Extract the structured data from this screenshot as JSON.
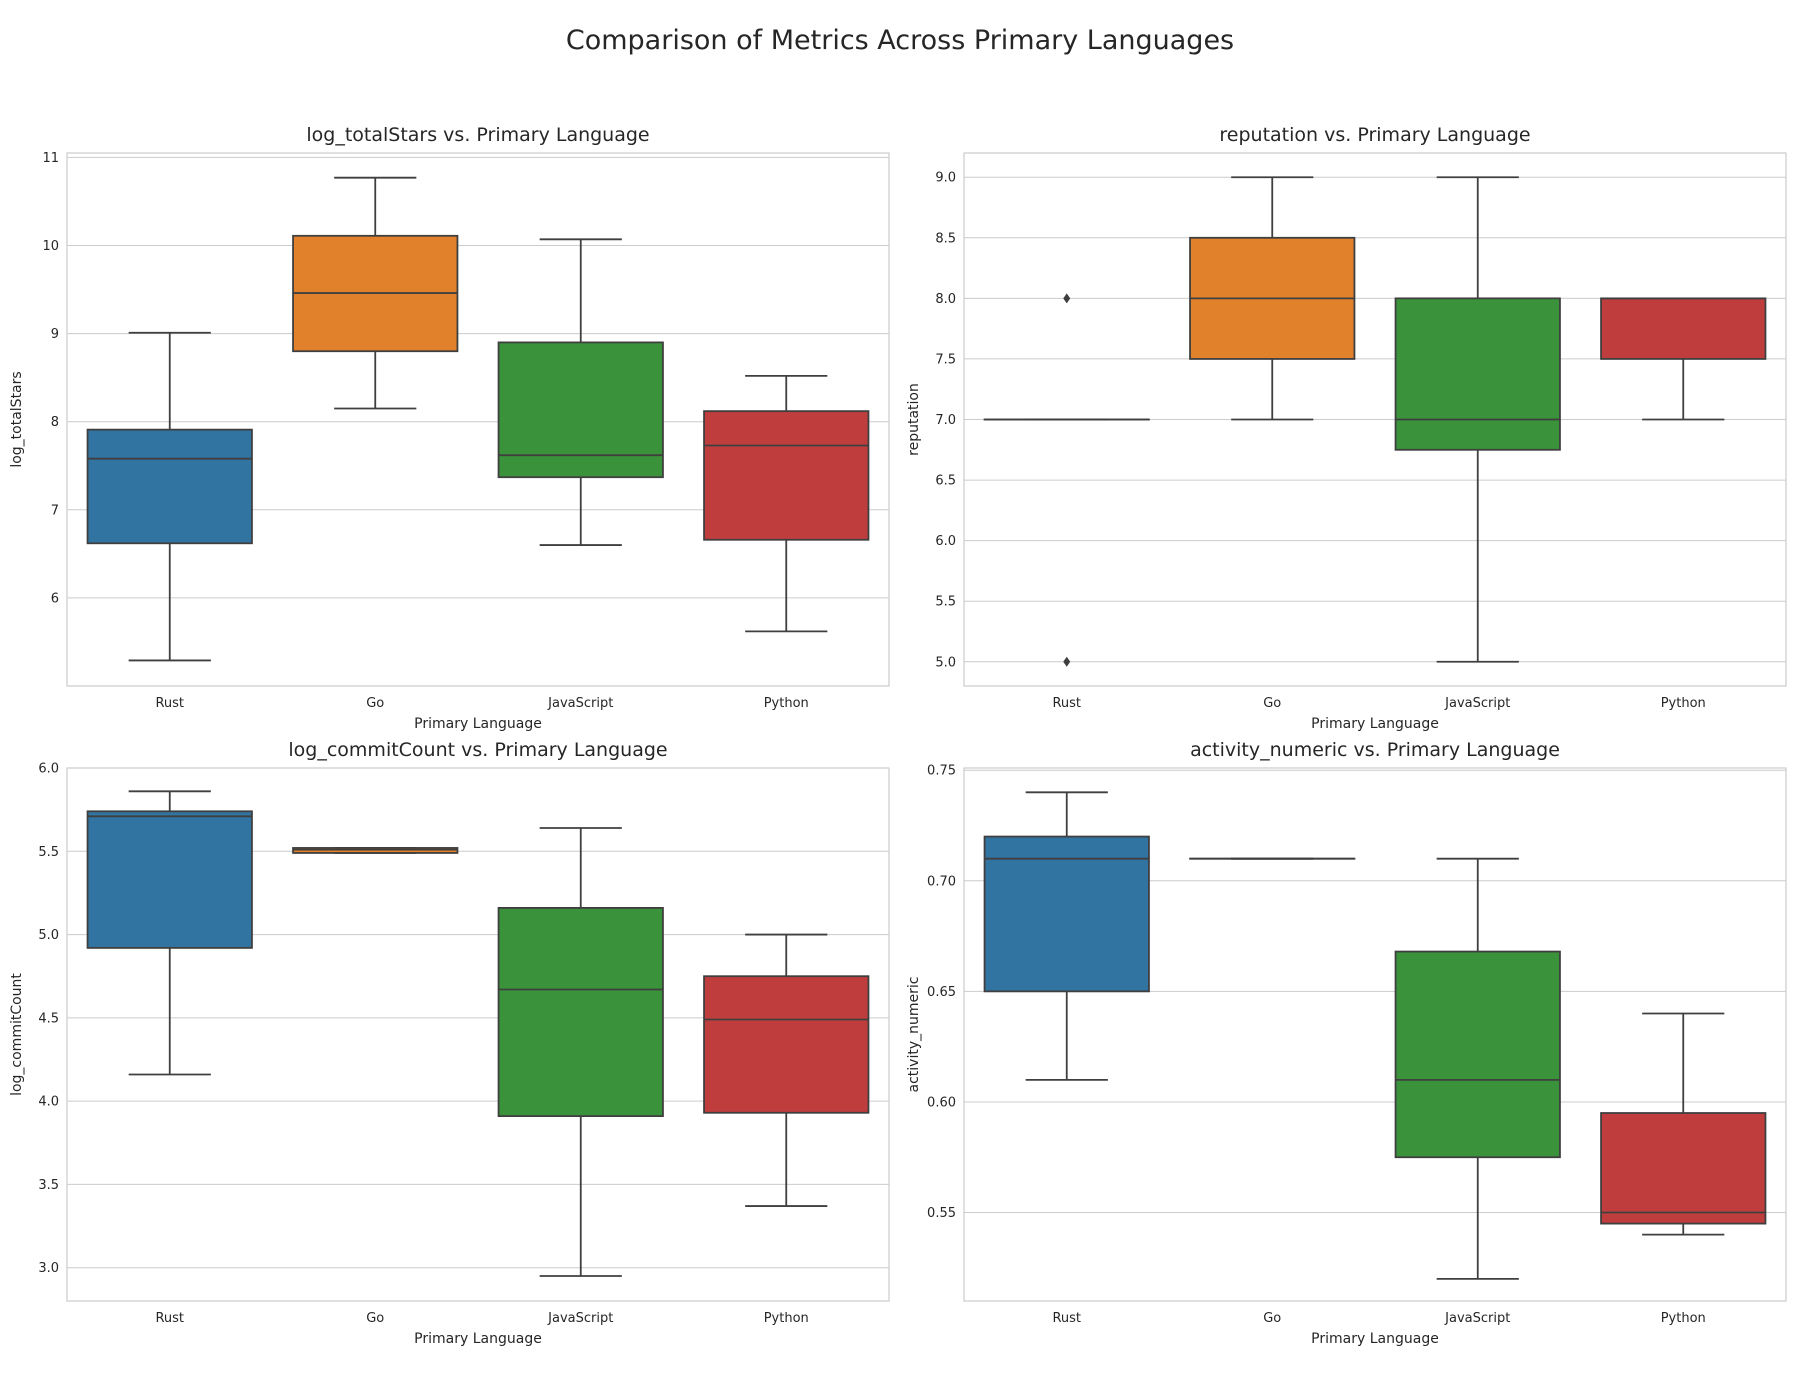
{
  "figure": {
    "title": "Comparison of Metrics Across Primary Languages",
    "box_colors": {
      "Rust": "#3274a1",
      "Go": "#e1812c",
      "JavaScript": "#3a923a",
      "Python": "#c03d3e"
    },
    "line_color": "#3f3f3f",
    "grid_color": "#cccccc"
  },
  "chart_data": [
    {
      "type": "box",
      "title": "log_totalStars vs. Primary Language",
      "xlabel": "Primary Language",
      "ylabel": "log_totalStars",
      "categories": [
        "Rust",
        "Go",
        "JavaScript",
        "Python"
      ],
      "ylim": [
        5.0,
        11.05
      ],
      "yticks": [
        6,
        7,
        8,
        9,
        10,
        11
      ],
      "ytick_labels": [
        "6",
        "7",
        "8",
        "9",
        "10",
        "11"
      ],
      "grid": true,
      "boxes": [
        {
          "category": "Rust",
          "whislo": 5.29,
          "q1": 6.62,
          "med": 7.58,
          "q3": 7.91,
          "whishi": 9.01,
          "fliers": []
        },
        {
          "category": "Go",
          "whislo": 8.15,
          "q1": 8.8,
          "med": 9.46,
          "q3": 10.11,
          "whishi": 10.77,
          "fliers": []
        },
        {
          "category": "JavaScript",
          "whislo": 6.6,
          "q1": 7.37,
          "med": 7.62,
          "q3": 8.9,
          "whishi": 10.07,
          "fliers": []
        },
        {
          "category": "Python",
          "whislo": 5.62,
          "q1": 6.66,
          "med": 7.73,
          "q3": 8.12,
          "whishi": 8.52,
          "fliers": []
        }
      ]
    },
    {
      "type": "box",
      "title": "reputation vs. Primary Language",
      "xlabel": "Primary Language",
      "ylabel": "reputation",
      "categories": [
        "Rust",
        "Go",
        "JavaScript",
        "Python"
      ],
      "ylim": [
        4.8,
        9.2
      ],
      "yticks": [
        5.0,
        5.5,
        6.0,
        6.5,
        7.0,
        7.5,
        8.0,
        8.5,
        9.0
      ],
      "ytick_labels": [
        "5.0",
        "5.5",
        "6.0",
        "6.5",
        "7.0",
        "7.5",
        "8.0",
        "8.5",
        "9.0"
      ],
      "grid": true,
      "boxes": [
        {
          "category": "Rust",
          "whislo": 7.0,
          "q1": 7.0,
          "med": 7.0,
          "q3": 7.0,
          "whishi": 7.0,
          "fliers": [
            8.0,
            5.0
          ]
        },
        {
          "category": "Go",
          "whislo": 7.0,
          "q1": 7.5,
          "med": 8.0,
          "q3": 8.5,
          "whishi": 9.0,
          "fliers": []
        },
        {
          "category": "JavaScript",
          "whislo": 5.0,
          "q1": 6.75,
          "med": 7.0,
          "q3": 8.0,
          "whishi": 9.0,
          "fliers": []
        },
        {
          "category": "Python",
          "whislo": 7.0,
          "q1": 7.5,
          "med": 8.0,
          "q3": 8.0,
          "whishi": 8.0,
          "fliers": []
        }
      ]
    },
    {
      "type": "box",
      "title": "log_commitCount vs. Primary Language",
      "xlabel": "Primary Language",
      "ylabel": "log_commitCount",
      "categories": [
        "Rust",
        "Go",
        "JavaScript",
        "Python"
      ],
      "ylim": [
        2.8,
        6.0
      ],
      "yticks": [
        3.0,
        3.5,
        4.0,
        4.5,
        5.0,
        5.5,
        6.0
      ],
      "ytick_labels": [
        "3.0",
        "3.5",
        "4.0",
        "4.5",
        "5.0",
        "5.5",
        "6.0"
      ],
      "grid": true,
      "boxes": [
        {
          "category": "Rust",
          "whislo": 4.16,
          "q1": 4.92,
          "med": 5.71,
          "q3": 5.74,
          "whishi": 5.86,
          "fliers": []
        },
        {
          "category": "Go",
          "whislo": 5.49,
          "q1": 5.49,
          "med": 5.51,
          "q3": 5.52,
          "whishi": 5.52,
          "fliers": []
        },
        {
          "category": "JavaScript",
          "whislo": 2.95,
          "q1": 3.91,
          "med": 4.67,
          "q3": 5.16,
          "whishi": 5.64,
          "fliers": []
        },
        {
          "category": "Python",
          "whislo": 3.37,
          "q1": 3.93,
          "med": 4.49,
          "q3": 4.75,
          "whishi": 5.0,
          "fliers": []
        }
      ]
    },
    {
      "type": "box",
      "title": "activity_numeric vs. Primary Language",
      "xlabel": "Primary Language",
      "ylabel": "activity_numeric",
      "categories": [
        "Rust",
        "Go",
        "JavaScript",
        "Python"
      ],
      "ylim": [
        0.51,
        0.751
      ],
      "yticks": [
        0.55,
        0.6,
        0.65,
        0.7,
        0.75
      ],
      "ytick_labels": [
        "0.55",
        "0.60",
        "0.65",
        "0.70",
        "0.75"
      ],
      "grid": true,
      "boxes": [
        {
          "category": "Rust",
          "whislo": 0.61,
          "q1": 0.65,
          "med": 0.71,
          "q3": 0.72,
          "whishi": 0.74,
          "fliers": []
        },
        {
          "category": "Go",
          "whislo": 0.71,
          "q1": 0.71,
          "med": 0.71,
          "q3": 0.71,
          "whishi": 0.71,
          "fliers": []
        },
        {
          "category": "JavaScript",
          "whislo": 0.52,
          "q1": 0.575,
          "med": 0.61,
          "q3": 0.668,
          "whishi": 0.71,
          "fliers": []
        },
        {
          "category": "Python",
          "whislo": 0.54,
          "q1": 0.545,
          "med": 0.55,
          "q3": 0.595,
          "whishi": 0.64,
          "fliers": []
        }
      ]
    }
  ]
}
